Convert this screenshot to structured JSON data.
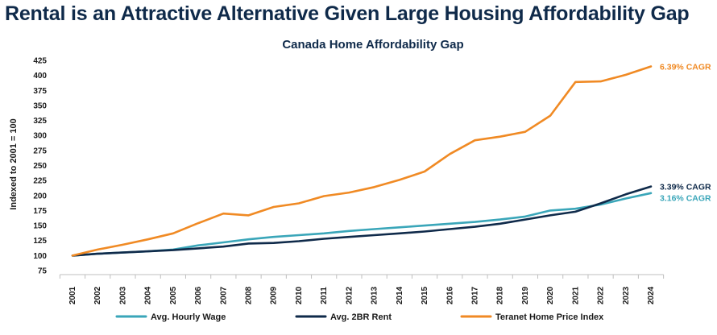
{
  "page": {
    "title": "Rental is an Attractive Alternative Given Large Housing Affordability Gap"
  },
  "chart_data": {
    "type": "line",
    "title": "Canada Home Affordability Gap",
    "xlabel": "",
    "ylabel": "Indexed to 2001 = 100",
    "ylim": [
      75,
      425
    ],
    "yticks": [
      "75",
      "100",
      "125",
      "150",
      "175",
      "200",
      "225",
      "250",
      "275",
      "300",
      "325",
      "350",
      "375",
      "400",
      "425"
    ],
    "grid": false,
    "legend_position": "bottom",
    "x": [
      "2001",
      "2002",
      "2003",
      "2004",
      "2005",
      "2006",
      "2007",
      "2008",
      "2009",
      "2010",
      "2011",
      "2012",
      "2013",
      "2014",
      "2015",
      "2016",
      "2017",
      "2018",
      "2019",
      "2020",
      "2021",
      "2022",
      "2023",
      "2024"
    ],
    "series": [
      {
        "name": "Avg. Hourly Wage",
        "color": "#3aa6b9",
        "end_label": "3.16% CAGR",
        "values": [
          100,
          103,
          105,
          107,
          110,
          117,
          122,
          127,
          131,
          134,
          137,
          141,
          144,
          147,
          150,
          153,
          156,
          160,
          165,
          175,
          178,
          185,
          195,
          204
        ]
      },
      {
        "name": "Avg. 2BR Rent",
        "color": "#0f2a4a",
        "end_label": "3.39% CAGR",
        "values": [
          100,
          103,
          105,
          107,
          109,
          112,
          115,
          120,
          121,
          124,
          128,
          131,
          134,
          137,
          140,
          144,
          148,
          153,
          160,
          167,
          173,
          187,
          202,
          215
        ]
      },
      {
        "name": "Teranet Home Price Index",
        "color": "#f08a24",
        "end_label": "6.39% CAGR",
        "values": [
          100,
          110,
          118,
          127,
          137,
          154,
          170,
          167,
          181,
          187,
          199,
          205,
          214,
          226,
          240,
          269,
          292,
          298,
          306,
          333,
          389,
          390,
          401,
          415
        ]
      }
    ]
  }
}
